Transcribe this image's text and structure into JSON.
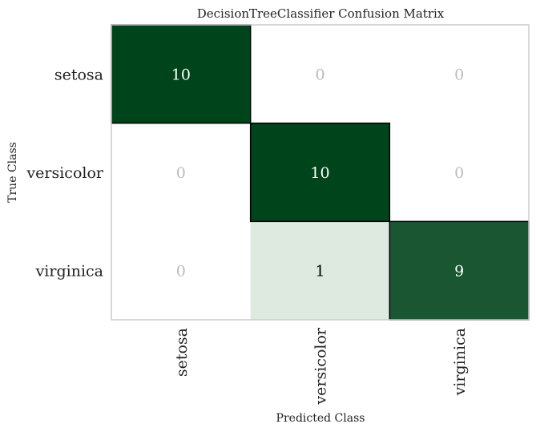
{
  "chart_data": {
    "type": "heatmap",
    "title": "DecisionTreeClassifier Confusion Matrix",
    "xlabel": "Predicted Class",
    "ylabel": "True Class",
    "x_categories": [
      "setosa",
      "versicolor",
      "virginica"
    ],
    "y_categories": [
      "setosa",
      "versicolor",
      "virginica"
    ],
    "values": [
      [
        10,
        0,
        0
      ],
      [
        0,
        10,
        0
      ],
      [
        0,
        1,
        9
      ]
    ],
    "colors": {
      "high": "#00441b",
      "low": "#f7fcf5",
      "zero": "#ffffff",
      "text_on_dark": "#ffffff",
      "text_on_light": "#000000",
      "text_zero": "#bbbbbb",
      "diagonal_border": "#000000",
      "frame": "#cccccc"
    },
    "grid": false
  }
}
